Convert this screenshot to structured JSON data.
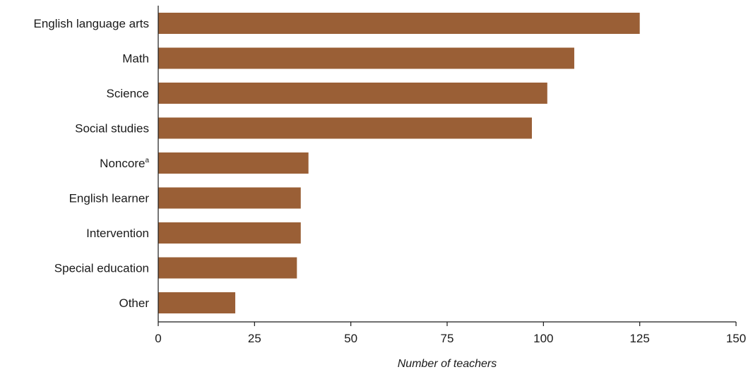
{
  "chart_data": {
    "type": "bar",
    "orientation": "horizontal",
    "categories": [
      "English language arts",
      "Math",
      "Science",
      "Social studies",
      "Noncore",
      "English learner",
      "Intervention",
      "Special education",
      "Other"
    ],
    "category_superscripts": [
      "",
      "",
      "",
      "",
      "a",
      "",
      "",
      "",
      ""
    ],
    "values": [
      125,
      108,
      101,
      97,
      39,
      37,
      37,
      36,
      20
    ],
    "xlim": [
      0,
      150
    ],
    "xticks": [
      "0",
      "25",
      "50",
      "75",
      "100",
      "125",
      "150"
    ],
    "xlabel": "Number of teachers",
    "title": "",
    "grid": false,
    "colors": {
      "bar": "#9a5f36",
      "axis": "#1a1a1a"
    }
  }
}
